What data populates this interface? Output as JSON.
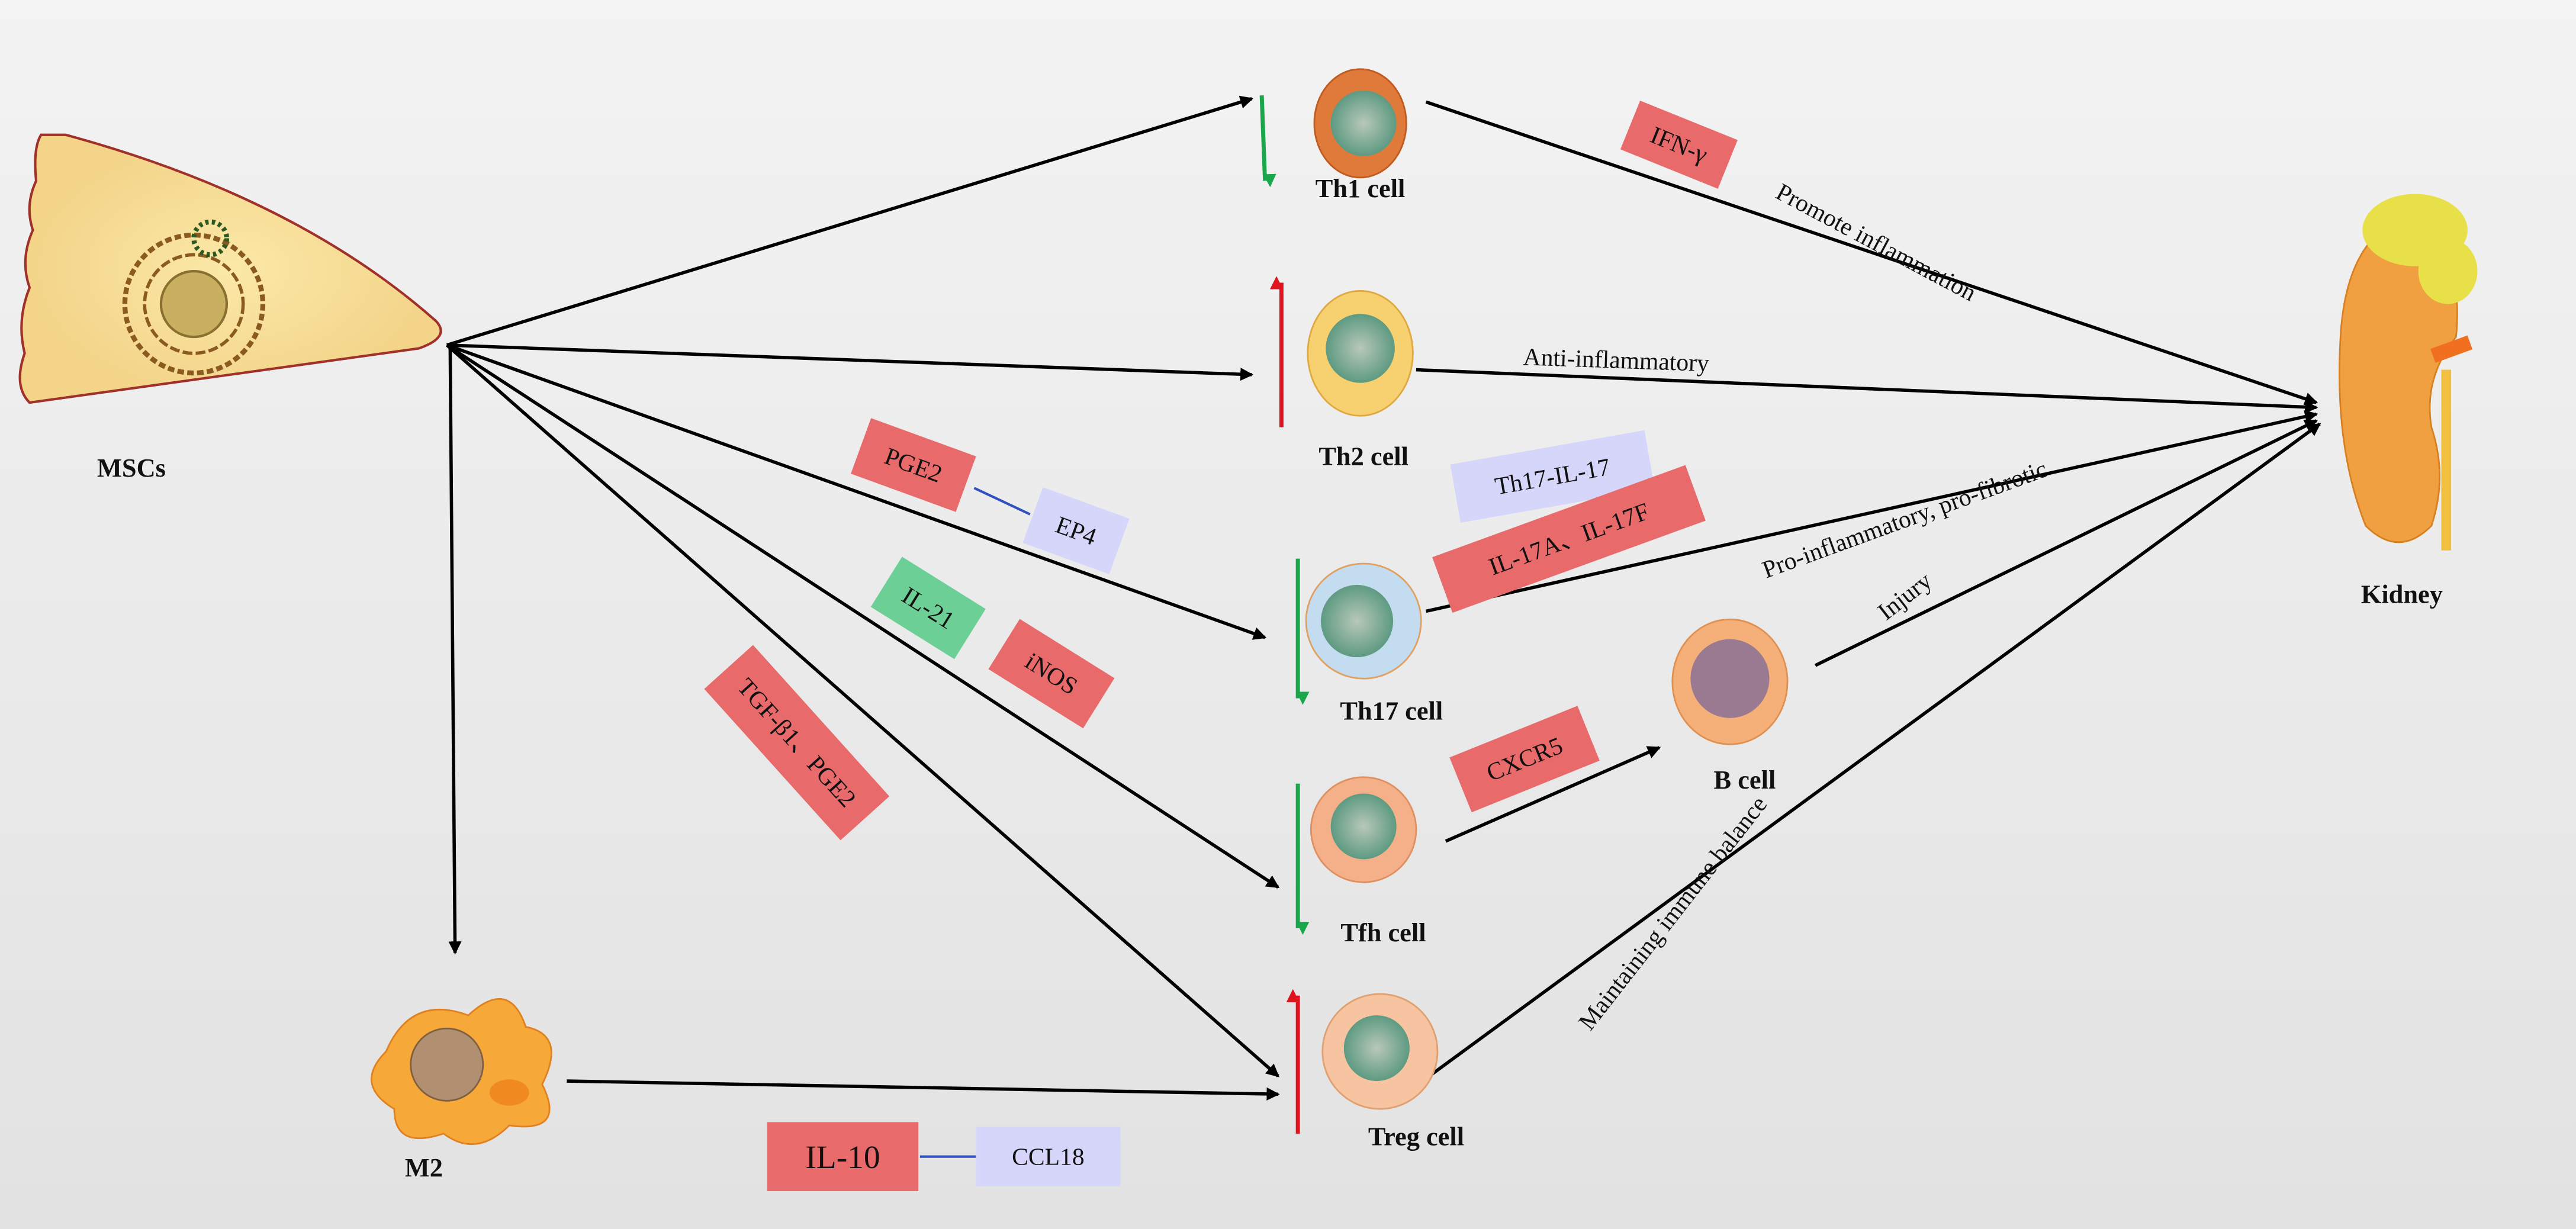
{
  "nodes": {
    "mscs": "MSCs",
    "th1": "Th1 cell",
    "th2": "Th2 cell",
    "th17": "Th17 cell",
    "tfh": "Tfh cell",
    "treg": "Treg cell",
    "m2": "M2",
    "bcell": "B cell",
    "kidney": "Kidney"
  },
  "effects": {
    "th1": "Promote inflammation",
    "th2": "Anti-inflammatory",
    "th17": "Pro-inflammatory,  pro-fibrotic",
    "bcell": "Injury",
    "treg": "Maintaining  immune  balance"
  },
  "factors": {
    "ifng": "IFN-γ",
    "pge2": "PGE2",
    "ep4": "EP4",
    "il21": "IL-21",
    "inos": "iNOS",
    "tgf": "TGF-β1、PGE2",
    "th17il17": "Th17-IL-17",
    "il17": "IL-17A、IL-17F",
    "cxcr5": "CXCR5",
    "il10": "IL-10",
    "ccl18": "CCL18"
  },
  "regulation": {
    "th1": "down",
    "th2": "up",
    "th17": "down",
    "tfh": "down",
    "treg": "up"
  },
  "colors": {
    "red_box": "#e86a6a",
    "green_box": "#6ccf96",
    "lavender_box": "#d6d6fb",
    "down_arrow": "#1aa64a",
    "up_arrow": "#e0141e"
  }
}
